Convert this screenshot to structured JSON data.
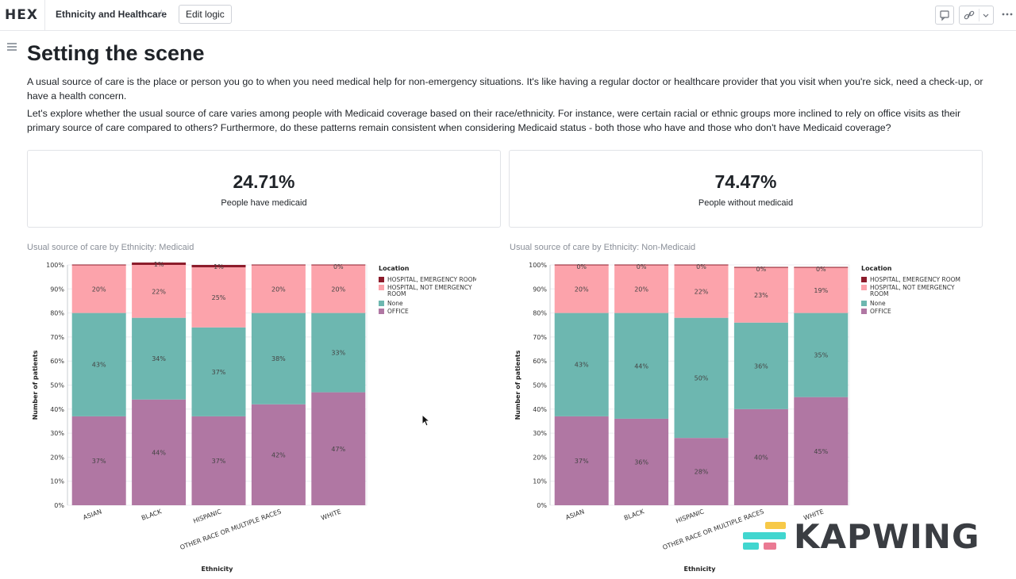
{
  "topbar": {
    "logo": "HEX",
    "project_title": "Ethnicity and Healthcare",
    "edit_logic_label": "Edit logic",
    "icons": [
      "star-icon",
      "comment-icon",
      "link-icon",
      "chevron-down-icon",
      "more-icon"
    ]
  },
  "page": {
    "title": "Setting the scene",
    "paragraph1": "A usual source of care is the place or person you go to when you need medical help for non-emergency situations. It's like having a regular doctor or healthcare provider that you visit when you're sick, need a check-up, or have a health concern.",
    "paragraph2": "Let's explore whether the usual source of care varies among people with Medicaid coverage based on their race/ethnicity. For instance, were certain racial or ethnic groups more inclined to rely on office visits as their primary source of care compared to others? Furthermore, do these patterns remain consistent when considering Medicaid status - both those who have and those who don't have Medicaid coverage?"
  },
  "stats": [
    {
      "value": "24.71%",
      "label": "People have medicaid"
    },
    {
      "value": "74.47%",
      "label": "People without medicaid"
    }
  ],
  "watermark": "KAPWING",
  "colors": {
    "emergency": "#8c1c2b",
    "not_emergency": "#fca3ab",
    "none": "#6db7b0",
    "office": "#b077a3"
  },
  "chart_data": [
    {
      "type": "bar",
      "stacked": true,
      "title": "Usual source of care by Ethnicity: Medicaid",
      "xlabel": "Ethnicity",
      "ylabel": "Number of patients",
      "ylim": [
        0,
        100
      ],
      "yticks": [
        "0%",
        "10%",
        "20%",
        "30%",
        "40%",
        "50%",
        "60%",
        "70%",
        "80%",
        "90%",
        "100%"
      ],
      "legend_title": "Location",
      "legend_position": "right",
      "categories": [
        "ASIAN",
        "BLACK",
        "HISPANIC",
        "OTHER RACE OR MULTIPLE RACES",
        "WHITE"
      ],
      "series": [
        {
          "name": "OFFICE",
          "values": [
            37,
            44,
            37,
            42,
            47
          ],
          "labels": [
            "37%",
            "44%",
            "37%",
            "42%",
            "47%"
          ]
        },
        {
          "name": "None",
          "values": [
            43,
            34,
            37,
            38,
            33
          ],
          "labels": [
            "43%",
            "34%",
            "37%",
            "38%",
            "33%"
          ]
        },
        {
          "name": "HOSPITAL, NOT EMERGENCY ROOM",
          "values": [
            20,
            22,
            25,
            20,
            20
          ],
          "labels": [
            "20%",
            "22%",
            "25%",
            "20%",
            "20%"
          ]
        },
        {
          "name": "HOSPITAL, EMERGENCY ROOM",
          "values": [
            0,
            1,
            1,
            0,
            0
          ],
          "labels": [
            "",
            "1%",
            "1%",
            "",
            "0%"
          ]
        }
      ]
    },
    {
      "type": "bar",
      "stacked": true,
      "title": "Usual source of care by Ethnicity: Non-Medicaid",
      "xlabel": "Ethnicity",
      "ylabel": "Number of patients",
      "ylim": [
        0,
        100
      ],
      "yticks": [
        "0%",
        "10%",
        "20%",
        "30%",
        "40%",
        "50%",
        "60%",
        "70%",
        "80%",
        "90%",
        "100%"
      ],
      "legend_title": "Location",
      "legend_position": "right",
      "categories": [
        "ASIAN",
        "BLACK",
        "HISPANIC",
        "OTHER RACE OR MULTIPLE RACES",
        "WHITE"
      ],
      "series": [
        {
          "name": "OFFICE",
          "values": [
            37,
            36,
            28,
            40,
            45
          ],
          "labels": [
            "37%",
            "36%",
            "28%",
            "40%",
            "45%"
          ]
        },
        {
          "name": "None",
          "values": [
            43,
            44,
            50,
            36,
            35
          ],
          "labels": [
            "43%",
            "44%",
            "50%",
            "36%",
            "35%"
          ]
        },
        {
          "name": "HOSPITAL, NOT EMERGENCY ROOM",
          "values": [
            20,
            20,
            22,
            23,
            19
          ],
          "labels": [
            "20%",
            "20%",
            "22%",
            "23%",
            "19%"
          ]
        },
        {
          "name": "HOSPITAL, EMERGENCY ROOM",
          "values": [
            0,
            0,
            0,
            0,
            0
          ],
          "labels": [
            "0%",
            "0%",
            "0%",
            "0%",
            "0%"
          ]
        }
      ]
    }
  ]
}
